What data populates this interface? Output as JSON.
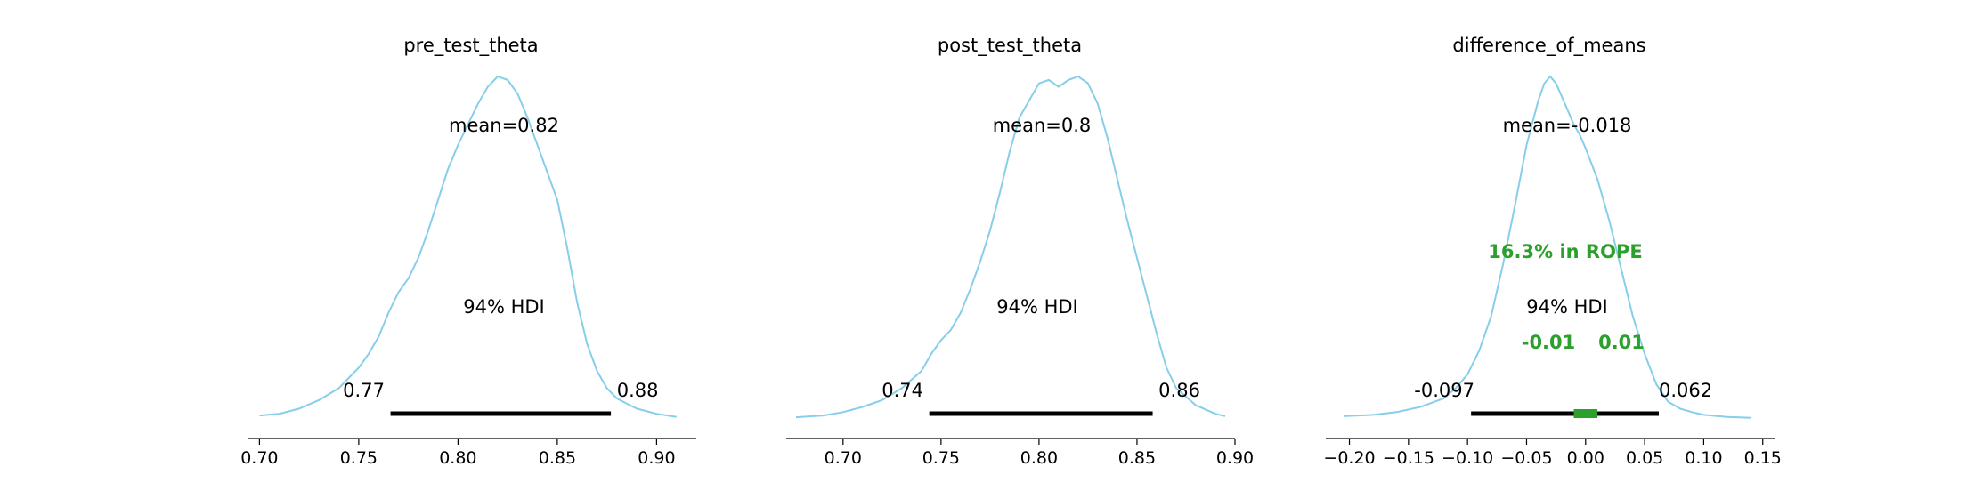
{
  "colors": {
    "kde": "#87ceeb",
    "hdi": "#000000",
    "rope": "#2ca02c",
    "axis": "#000000"
  },
  "chart_data": [
    {
      "type": "line",
      "title": "pre_test_theta",
      "mean_label": "mean=0.82",
      "hdi_label": "94% HDI",
      "hdi": [
        0.766,
        0.877
      ],
      "hdi_labels": [
        "0.77",
        "0.88"
      ],
      "xlim": [
        0.694,
        0.92
      ],
      "xticks": [
        0.7,
        0.75,
        0.8,
        0.85,
        0.9
      ],
      "xtick_labels": [
        "0.70",
        "0.75",
        "0.80",
        "0.85",
        "0.90"
      ],
      "density": {
        "x": [
          0.7,
          0.71,
          0.72,
          0.73,
          0.74,
          0.75,
          0.755,
          0.76,
          0.765,
          0.77,
          0.775,
          0.78,
          0.785,
          0.79,
          0.795,
          0.8,
          0.805,
          0.81,
          0.815,
          0.82,
          0.825,
          0.83,
          0.835,
          0.84,
          0.845,
          0.85,
          0.855,
          0.86,
          0.865,
          0.87,
          0.875,
          0.88,
          0.885,
          0.89,
          0.9,
          0.91
        ],
        "y": [
          0.01,
          0.015,
          0.03,
          0.055,
          0.09,
          0.15,
          0.19,
          0.24,
          0.31,
          0.37,
          0.41,
          0.47,
          0.55,
          0.64,
          0.73,
          0.8,
          0.86,
          0.92,
          0.97,
          1.0,
          0.99,
          0.95,
          0.88,
          0.8,
          0.72,
          0.64,
          0.5,
          0.34,
          0.22,
          0.14,
          0.09,
          0.06,
          0.045,
          0.03,
          0.015,
          0.006
        ]
      }
    },
    {
      "type": "line",
      "title": "post_test_theta",
      "mean_label": "mean=0.8",
      "hdi_label": "94% HDI",
      "hdi": [
        0.744,
        0.858
      ],
      "hdi_labels": [
        "0.74",
        "0.86"
      ],
      "xlim": [
        0.671,
        0.9
      ],
      "xticks": [
        0.7,
        0.75,
        0.8,
        0.85,
        0.9
      ],
      "xtick_labels": [
        "0.70",
        "0.75",
        "0.80",
        "0.85",
        "0.90"
      ],
      "density": {
        "x": [
          0.676,
          0.69,
          0.7,
          0.71,
          0.72,
          0.73,
          0.74,
          0.745,
          0.75,
          0.755,
          0.76,
          0.765,
          0.77,
          0.775,
          0.78,
          0.785,
          0.79,
          0.795,
          0.8,
          0.805,
          0.81,
          0.815,
          0.82,
          0.825,
          0.83,
          0.835,
          0.84,
          0.845,
          0.85,
          0.855,
          0.86,
          0.865,
          0.87,
          0.88,
          0.89,
          0.895
        ],
        "y": [
          0.005,
          0.01,
          0.02,
          0.035,
          0.055,
          0.09,
          0.14,
          0.19,
          0.23,
          0.26,
          0.31,
          0.38,
          0.46,
          0.55,
          0.66,
          0.78,
          0.88,
          0.93,
          0.98,
          0.99,
          0.97,
          0.99,
          1.0,
          0.98,
          0.92,
          0.82,
          0.7,
          0.58,
          0.47,
          0.36,
          0.25,
          0.15,
          0.09,
          0.04,
          0.015,
          0.008
        ]
      }
    },
    {
      "type": "line",
      "title": "difference_of_means",
      "mean_label": "mean=-0.018",
      "hdi_label": "94% HDI",
      "hdi": [
        -0.097,
        0.062
      ],
      "hdi_labels": [
        "-0.097",
        "0.062"
      ],
      "rope": [
        -0.01,
        0.01
      ],
      "rope_labels": [
        "-0.01",
        "0.01"
      ],
      "rope_text": "16.3% in ROPE",
      "xlim": [
        -0.22,
        0.16
      ],
      "xticks": [
        -0.2,
        -0.15,
        -0.1,
        -0.05,
        0.0,
        0.05,
        0.1,
        0.15
      ],
      "xtick_labels": [
        "−0.20",
        "−0.15",
        "−0.10",
        "−0.05",
        "0.00",
        "0.05",
        "0.10",
        "0.15"
      ],
      "density": {
        "x": [
          -0.205,
          -0.18,
          -0.16,
          -0.14,
          -0.12,
          -0.11,
          -0.1,
          -0.09,
          -0.08,
          -0.07,
          -0.06,
          -0.05,
          -0.04,
          -0.035,
          -0.03,
          -0.025,
          -0.02,
          -0.015,
          -0.01,
          -0.005,
          0.0,
          0.01,
          0.02,
          0.03,
          0.04,
          0.05,
          0.06,
          0.07,
          0.08,
          0.09,
          0.1,
          0.12,
          0.14
        ],
        "y": [
          0.008,
          0.012,
          0.02,
          0.035,
          0.06,
          0.09,
          0.13,
          0.2,
          0.3,
          0.45,
          0.62,
          0.8,
          0.93,
          0.98,
          1.0,
          0.98,
          0.94,
          0.9,
          0.86,
          0.83,
          0.79,
          0.7,
          0.58,
          0.44,
          0.3,
          0.19,
          0.1,
          0.05,
          0.03,
          0.02,
          0.012,
          0.006,
          0.003
        ]
      }
    }
  ]
}
